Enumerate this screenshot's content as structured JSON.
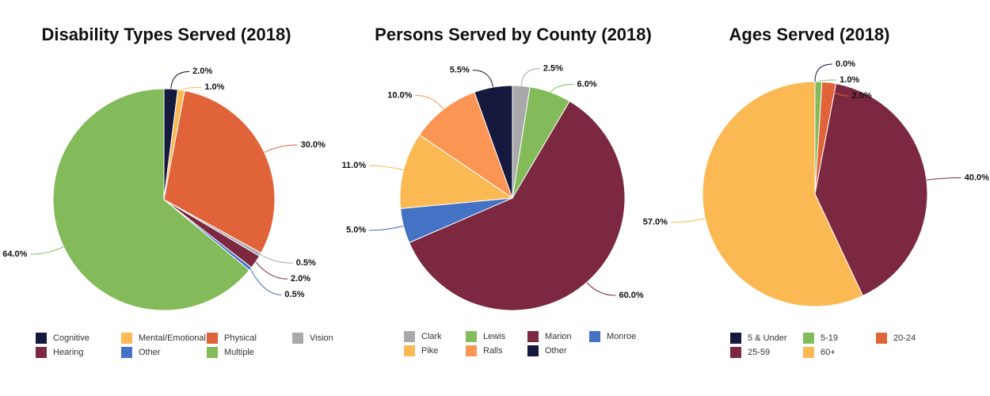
{
  "chart_data": [
    {
      "type": "pie",
      "title": "Disability Types Served (2018)",
      "categories": [
        "Cognitive",
        "Mental/Emotional",
        "Physical",
        "Vision",
        "Hearing",
        "Other",
        "Multiple"
      ],
      "values": [
        2,
        1,
        30,
        0.5,
        2,
        0.5,
        64
      ],
      "value_labels": [
        "2.0%",
        "1.0%",
        "30.0%",
        "0.5%",
        "2.0%",
        "0.5%",
        "64.0%"
      ],
      "colors": [
        "#14193d",
        "#fbb954",
        "#e0633a",
        "#a9a9ab",
        "#7b2840",
        "#4472c4",
        "#83bb5a"
      ]
    },
    {
      "type": "pie",
      "title": "Persons Served by County (2018)",
      "categories": [
        "Clark",
        "Lewis",
        "Marion",
        "Monroe",
        "Pike",
        "Ralls",
        "Other"
      ],
      "values": [
        2.5,
        6,
        60,
        5,
        11,
        10,
        5.5
      ],
      "value_labels": [
        "2.5%",
        "6.0%",
        "60.0%",
        "5.0%",
        "11.0%",
        "10.0%",
        "5.5%"
      ],
      "colors": [
        "#a9a9ab",
        "#83bb5a",
        "#7b2840",
        "#4472c4",
        "#fbb954",
        "#fb9553",
        "#14193d"
      ]
    },
    {
      "type": "pie",
      "title": "Ages Served (2018)",
      "categories": [
        "5 & Under",
        "5-19",
        "20-24",
        "25-59",
        "60+"
      ],
      "values": [
        0,
        1,
        2,
        40,
        57
      ],
      "value_labels": [
        "0.0%",
        "1.0%",
        "2.0%",
        "40.0%",
        "57.0%"
      ],
      "colors": [
        "#14193d",
        "#83bb5a",
        "#e0633a",
        "#7b2840",
        "#fbb954"
      ]
    }
  ]
}
